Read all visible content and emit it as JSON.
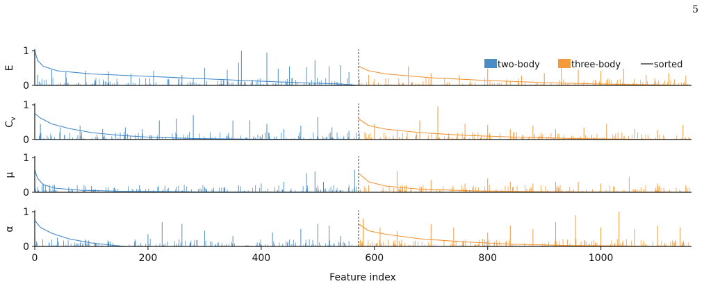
{
  "page_number": "5",
  "colors": {
    "two_body": "#4a8cc4",
    "three_body": "#f59a3c",
    "two_body_line": "#3b86c9",
    "three_body_line": "#f0922e",
    "divider": "#777777"
  },
  "chart_data": {
    "type": "bar",
    "xlabel": "Feature index",
    "xlim": [
      0,
      1160
    ],
    "xticks": [
      "0",
      "200",
      "400",
      "600",
      "800",
      "1000"
    ],
    "xtick_values": [
      0,
      200,
      400,
      600,
      800,
      1000
    ],
    "split_index": 572,
    "legend": {
      "placement": "top-right of first panel",
      "items": [
        {
          "label": "two-body",
          "kind": "bar",
          "series": "two_body"
        },
        {
          "label": "three-body",
          "kind": "bar",
          "series": "three_body"
        },
        {
          "label": "sorted",
          "kind": "line",
          "series": "sorted"
        }
      ]
    },
    "panels": [
      {
        "ylabel": "E",
        "ylim": [
          0,
          1
        ],
        "yticks": [
          "0",
          "1"
        ],
        "two_body_spikes": [
          [
            5,
            0.3
          ],
          [
            30,
            0.45
          ],
          [
            55,
            0.38
          ],
          [
            90,
            0.42
          ],
          [
            130,
            0.4
          ],
          [
            170,
            0.33
          ],
          [
            210,
            0.42
          ],
          [
            260,
            0.3
          ],
          [
            300,
            0.5
          ],
          [
            340,
            0.45
          ],
          [
            360,
            0.65
          ],
          [
            365,
            1.0
          ],
          [
            410,
            0.95
          ],
          [
            430,
            0.48
          ],
          [
            450,
            0.55
          ],
          [
            480,
            0.52
          ],
          [
            495,
            0.72
          ],
          [
            520,
            0.55
          ],
          [
            540,
            0.58
          ],
          [
            555,
            0.38
          ]
        ],
        "three_body_spikes": [
          [
            590,
            0.3
          ],
          [
            620,
            0.2
          ],
          [
            660,
            0.55
          ],
          [
            700,
            0.35
          ],
          [
            750,
            0.3
          ],
          [
            800,
            0.48
          ],
          [
            860,
            0.28
          ],
          [
            900,
            0.35
          ],
          [
            930,
            0.5
          ],
          [
            960,
            0.45
          ],
          [
            1000,
            0.42
          ],
          [
            1040,
            0.48
          ],
          [
            1080,
            0.3
          ],
          [
            1120,
            0.35
          ],
          [
            1150,
            0.28
          ]
        ],
        "two_body_sorted": [
          [
            0,
            1.0
          ],
          [
            5,
            0.72
          ],
          [
            15,
            0.55
          ],
          [
            40,
            0.42
          ],
          [
            100,
            0.33
          ],
          [
            200,
            0.26
          ],
          [
            300,
            0.19
          ],
          [
            400,
            0.12
          ],
          [
            480,
            0.07
          ],
          [
            540,
            0.04
          ],
          [
            572,
            0.0
          ]
        ],
        "three_body_sorted": [
          [
            572,
            0.55
          ],
          [
            590,
            0.42
          ],
          [
            620,
            0.33
          ],
          [
            700,
            0.22
          ],
          [
            800,
            0.14
          ],
          [
            900,
            0.08
          ],
          [
            1000,
            0.04
          ],
          [
            1100,
            0.015
          ],
          [
            1160,
            0.0
          ]
        ]
      },
      {
        "ylabel": "C_v",
        "ylim": [
          0,
          1
        ],
        "yticks": [
          "0",
          "1"
        ],
        "two_body_spikes": [
          [
            10,
            0.45
          ],
          [
            45,
            0.35
          ],
          [
            80,
            0.4
          ],
          [
            120,
            0.3
          ],
          [
            160,
            0.35
          ],
          [
            190,
            0.3
          ],
          [
            220,
            0.55
          ],
          [
            250,
            0.6
          ],
          [
            280,
            0.7
          ],
          [
            350,
            0.55
          ],
          [
            380,
            0.55
          ],
          [
            410,
            0.45
          ],
          [
            440,
            0.3
          ],
          [
            470,
            0.4
          ],
          [
            500,
            0.65
          ],
          [
            525,
            0.35
          ],
          [
            555,
            0.25
          ]
        ],
        "three_body_spikes": [
          [
            600,
            0.45
          ],
          [
            640,
            0.25
          ],
          [
            680,
            0.55
          ],
          [
            712,
            0.95
          ],
          [
            760,
            0.45
          ],
          [
            800,
            0.42
          ],
          [
            840,
            0.3
          ],
          [
            880,
            0.4
          ],
          [
            920,
            0.3
          ],
          [
            970,
            0.35
          ],
          [
            1010,
            0.45
          ],
          [
            1060,
            0.3
          ],
          [
            1100,
            0.28
          ],
          [
            1145,
            0.42
          ]
        ],
        "two_body_sorted": [
          [
            0,
            0.75
          ],
          [
            10,
            0.62
          ],
          [
            30,
            0.45
          ],
          [
            60,
            0.32
          ],
          [
            100,
            0.2
          ],
          [
            150,
            0.12
          ],
          [
            200,
            0.07
          ],
          [
            280,
            0.03
          ],
          [
            400,
            0.01
          ],
          [
            572,
            0.0
          ]
        ],
        "three_body_sorted": [
          [
            572,
            0.6
          ],
          [
            590,
            0.4
          ],
          [
            620,
            0.3
          ],
          [
            680,
            0.2
          ],
          [
            760,
            0.12
          ],
          [
            850,
            0.07
          ],
          [
            950,
            0.03
          ],
          [
            1060,
            0.01
          ],
          [
            1160,
            0.0
          ]
        ]
      },
      {
        "ylabel": "μ",
        "ylim": [
          0,
          1
        ],
        "yticks": [
          "0",
          "1"
        ],
        "two_body_spikes": [
          [
            15,
            0.25
          ],
          [
            60,
            0.15
          ],
          [
            100,
            0.18
          ],
          [
            140,
            0.12
          ],
          [
            185,
            0.2
          ],
          [
            230,
            0.18
          ],
          [
            300,
            0.15
          ],
          [
            360,
            0.2
          ],
          [
            400,
            0.25
          ],
          [
            440,
            0.3
          ],
          [
            480,
            0.55
          ],
          [
            495,
            0.6
          ],
          [
            510,
            0.3
          ],
          [
            565,
            0.65
          ]
        ],
        "three_body_spikes": [
          [
            590,
            0.2
          ],
          [
            640,
            0.6
          ],
          [
            700,
            0.35
          ],
          [
            760,
            0.25
          ],
          [
            800,
            0.4
          ],
          [
            840,
            0.3
          ],
          [
            880,
            0.25
          ],
          [
            920,
            0.3
          ],
          [
            960,
            0.3
          ],
          [
            1000,
            0.25
          ],
          [
            1050,
            0.45
          ],
          [
            1100,
            0.25
          ],
          [
            1150,
            0.2
          ]
        ],
        "two_body_sorted": [
          [
            0,
            0.65
          ],
          [
            5,
            0.4
          ],
          [
            15,
            0.22
          ],
          [
            35,
            0.12
          ],
          [
            80,
            0.06
          ],
          [
            150,
            0.03
          ],
          [
            300,
            0.01
          ],
          [
            572,
            0.0
          ]
        ],
        "three_body_sorted": [
          [
            572,
            0.55
          ],
          [
            590,
            0.3
          ],
          [
            620,
            0.18
          ],
          [
            680,
            0.09
          ],
          [
            780,
            0.04
          ],
          [
            900,
            0.015
          ],
          [
            1160,
            0.0
          ]
        ]
      },
      {
        "ylabel": "α",
        "ylim": [
          0,
          1
        ],
        "yticks": [
          "0",
          "1"
        ],
        "two_body_spikes": [
          [
            40,
            0.25
          ],
          [
            85,
            0.1
          ],
          [
            130,
            0.12
          ],
          [
            200,
            0.35
          ],
          [
            225,
            0.7
          ],
          [
            260,
            0.65
          ],
          [
            300,
            0.45
          ],
          [
            350,
            0.3
          ],
          [
            420,
            0.4
          ],
          [
            470,
            0.5
          ],
          [
            500,
            0.65
          ],
          [
            520,
            0.6
          ],
          [
            540,
            0.3
          ]
        ],
        "three_body_spikes": [
          [
            580,
            0.8
          ],
          [
            610,
            0.55
          ],
          [
            640,
            0.45
          ],
          [
            700,
            0.65
          ],
          [
            740,
            0.55
          ],
          [
            800,
            0.4
          ],
          [
            840,
            0.6
          ],
          [
            880,
            0.5
          ],
          [
            920,
            0.7
          ],
          [
            955,
            0.9
          ],
          [
            1000,
            0.55
          ],
          [
            1032,
            1.0
          ],
          [
            1060,
            0.5
          ],
          [
            1100,
            0.6
          ],
          [
            1140,
            0.55
          ]
        ],
        "two_body_sorted": [
          [
            0,
            0.75
          ],
          [
            10,
            0.55
          ],
          [
            30,
            0.38
          ],
          [
            60,
            0.22
          ],
          [
            100,
            0.1
          ],
          [
            140,
            0.03
          ],
          [
            160,
            0.0
          ],
          [
            572,
            0.0
          ]
        ],
        "three_body_sorted": [
          [
            572,
            0.65
          ],
          [
            590,
            0.45
          ],
          [
            620,
            0.35
          ],
          [
            680,
            0.22
          ],
          [
            760,
            0.13
          ],
          [
            850,
            0.06
          ],
          [
            950,
            0.025
          ],
          [
            1100,
            0.005
          ],
          [
            1160,
            0.0
          ]
        ]
      }
    ]
  }
}
